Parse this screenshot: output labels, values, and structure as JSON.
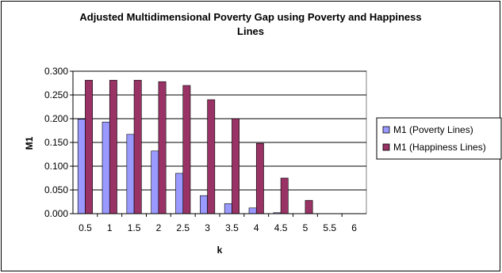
{
  "chart_data": {
    "type": "bar",
    "title_line1": "Adjusted Multidimensional Poverty Gap using Poverty and Happiness",
    "title_line2": "Lines",
    "xlabel": "k",
    "ylabel": "M1",
    "categories": [
      "0.5",
      "1",
      "1.5",
      "2",
      "2.5",
      "3",
      "3.5",
      "4",
      "4.5",
      "5",
      "5.5",
      "6"
    ],
    "ylim": [
      0,
      0.3
    ],
    "yticks": [
      "0.000",
      "0.050",
      "0.100",
      "0.150",
      "0.200",
      "0.250",
      "0.300"
    ],
    "grid": true,
    "legend_position": "right",
    "series": [
      {
        "name": "M1 (Poverty Lines)",
        "color": "#9999ff",
        "values": [
          0.199,
          0.193,
          0.167,
          0.132,
          0.085,
          0.038,
          0.021,
          0.012,
          0.002,
          0.0,
          0.0,
          0.0
        ]
      },
      {
        "name": "M1 (Happiness Lines)",
        "color": "#993366",
        "values": [
          0.281,
          0.281,
          0.281,
          0.278,
          0.27,
          0.24,
          0.2,
          0.148,
          0.075,
          0.028,
          0.0,
          0.0
        ]
      }
    ]
  }
}
